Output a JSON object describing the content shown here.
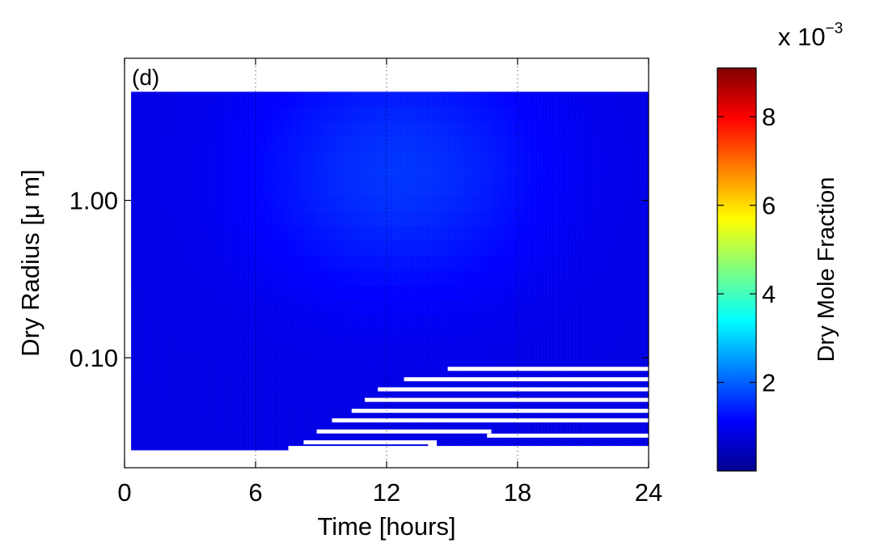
{
  "chart_data": {
    "type": "heatmap",
    "panel_label": "(d)",
    "xlabel": "Time [hours]",
    "ylabel": "Dry Radius [μ m]",
    "xlim": [
      0,
      24
    ],
    "ylim": [
      0.02,
      8.0
    ],
    "yscale": "log",
    "x_ticks": [
      0,
      6,
      12,
      18,
      24
    ],
    "x_tick_labels": [
      "0",
      "6",
      "12",
      "18",
      "24"
    ],
    "y_ticks": [
      0.1,
      1.0
    ],
    "y_tick_labels": [
      "0.10",
      "1.00"
    ],
    "grid": "dotted vertical at x ticks",
    "data_extent": {
      "x": [
        0.3,
        24
      ],
      "y": [
        0.026,
        4.9
      ]
    },
    "colormap": "jet",
    "colorbar": {
      "label": "Dry Mole Fraction",
      "multiplier": "x 10",
      "exponent": "−3",
      "range": [
        0,
        9.1
      ],
      "ticks": [
        2,
        4,
        6,
        8
      ],
      "tick_labels": [
        "2",
        "4",
        "6",
        "8"
      ]
    },
    "value_field": {
      "description_units": "x 10^-3 dry mole fraction",
      "background_min": 0.9,
      "peak_value": 1.6,
      "peak_time": 12.5,
      "peak_radius": 1.5
    },
    "empty_bins": [
      {
        "x_start": 14.8,
        "x_end": 24,
        "radius": 0.085
      },
      {
        "x_start": 12.8,
        "x_end": 24,
        "radius": 0.073
      },
      {
        "x_start": 11.6,
        "x_end": 24,
        "radius": 0.063
      },
      {
        "x_start": 11.0,
        "x_end": 24,
        "radius": 0.054
      },
      {
        "x_start": 10.4,
        "x_end": 24,
        "radius": 0.046
      },
      {
        "x_start": 9.5,
        "x_end": 24,
        "radius": 0.04
      },
      {
        "x_start": 8.8,
        "x_end": 16.8,
        "radius": 0.034
      },
      {
        "x_start": 16.6,
        "x_end": 24,
        "radius": 0.032
      },
      {
        "x_start": 8.2,
        "x_end": 14.3,
        "radius": 0.029
      },
      {
        "x_start": 13.9,
        "x_end": 14.3,
        "radius": 0.0275
      }
    ],
    "colors": {
      "background": "#ffffff",
      "axis": "#000000",
      "gap": "#ffffff"
    }
  }
}
